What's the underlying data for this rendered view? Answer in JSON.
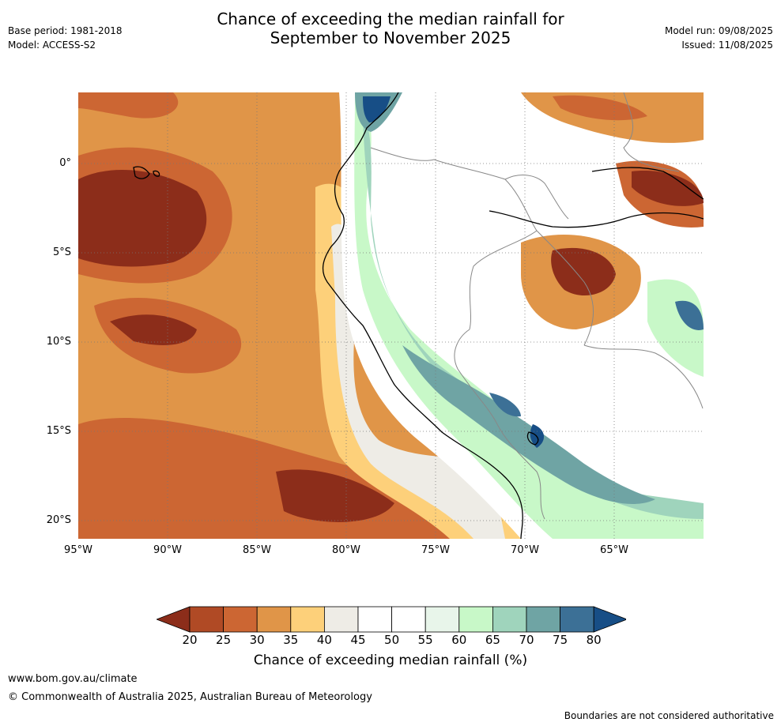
{
  "title": {
    "line1": "Chance of exceeding the median rainfall for",
    "line2": "September to November 2025"
  },
  "meta_left": {
    "base_period": "Base period: 1981-2018",
    "model": "Model: ACCESS-S2"
  },
  "meta_right": {
    "model_run": "Model run: 09/08/2025",
    "issued": "Issued: 11/08/2025"
  },
  "map": {
    "extent": {
      "lon": [
        -95,
        -60
      ],
      "lat": [
        -21,
        4
      ]
    },
    "lat_labels": [
      "0°",
      "5°S",
      "10°S",
      "15°S",
      "20°S"
    ],
    "lon_labels": [
      "95°W",
      "90°W",
      "85°W",
      "80°W",
      "75°W",
      "70°W",
      "65°W"
    ],
    "gridlines": true
  },
  "colorbar": {
    "ticks": [
      "20",
      "25",
      "30",
      "35",
      "40",
      "45",
      "50",
      "55",
      "60",
      "65",
      "70",
      "75",
      "80"
    ],
    "colors": [
      "#8c2d1a",
      "#b04a25",
      "#cc6633",
      "#e09548",
      "#fdd07a",
      "#eeece6",
      "#ffffff",
      "#ffffff",
      "#e8f5ea",
      "#c8f8c8",
      "#9fd4bc",
      "#6fa4a4",
      "#3c7096",
      "#174e86"
    ],
    "label": "Chance of exceeding median rainfall (%)"
  },
  "footer": {
    "url": "www.bom.gov.au/climate",
    "copyright": "© Commonwealth of Australia 2025, Australian Bureau of Meteorology",
    "note": "Boundaries are not considered authoritative"
  }
}
